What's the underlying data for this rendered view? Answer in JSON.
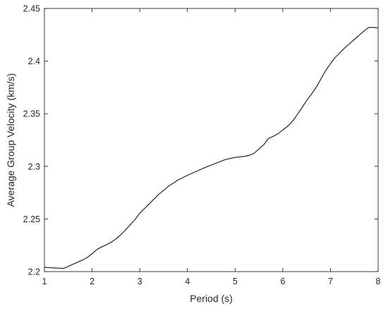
{
  "chart_data": {
    "type": "line",
    "title": "",
    "xlabel": "Period (s)",
    "ylabel": "Average Group Velocity (km/s)",
    "xlim": [
      1,
      8
    ],
    "ylim": [
      2.2,
      2.45
    ],
    "xticks": [
      1,
      2,
      3,
      4,
      5,
      6,
      7,
      8
    ],
    "yticks": [
      2.2,
      2.25,
      2.3,
      2.35,
      2.4,
      2.45
    ],
    "xtick_labels": [
      "1",
      "2",
      "3",
      "4",
      "5",
      "6",
      "7",
      "8"
    ],
    "ytick_labels": [
      "2.2",
      "2.25",
      "2.3",
      "2.35",
      "2.4",
      "2.45"
    ],
    "grid": false,
    "series": [
      {
        "color": "#262626",
        "x": [
          1.0,
          1.2,
          1.4,
          1.6,
          1.8,
          1.9,
          2.0,
          2.1,
          2.2,
          2.3,
          2.4,
          2.5,
          2.6,
          2.7,
          2.8,
          2.9,
          3.0,
          3.2,
          3.4,
          3.6,
          3.8,
          4.0,
          4.2,
          4.4,
          4.6,
          4.8,
          4.9,
          5.0,
          5.1,
          5.2,
          5.3,
          5.4,
          5.5,
          5.6,
          5.7,
          5.8,
          5.9,
          6.0,
          6.1,
          6.2,
          6.3,
          6.4,
          6.5,
          6.6,
          6.7,
          6.8,
          6.9,
          7.0,
          7.1,
          7.2,
          7.3,
          7.4,
          7.5,
          7.6,
          7.7,
          7.8,
          7.9,
          8.0
        ],
        "y": [
          2.204,
          2.2035,
          2.203,
          2.207,
          2.211,
          2.2135,
          2.217,
          2.221,
          2.2235,
          2.2255,
          2.228,
          2.231,
          2.235,
          2.2395,
          2.2445,
          2.2495,
          2.2555,
          2.2645,
          2.2735,
          2.281,
          2.287,
          2.2915,
          2.2955,
          2.2995,
          2.303,
          2.3065,
          2.3075,
          2.3085,
          2.309,
          2.3095,
          2.3105,
          2.3125,
          2.3165,
          2.3205,
          2.3265,
          2.3285,
          2.331,
          2.3345,
          2.338,
          2.3425,
          2.349,
          2.3555,
          2.3625,
          2.3685,
          2.375,
          2.383,
          2.391,
          2.3975,
          2.4035,
          2.408,
          2.4125,
          2.4165,
          2.4205,
          2.4245,
          2.4285,
          2.432,
          2.432,
          2.4315
        ]
      }
    ]
  }
}
